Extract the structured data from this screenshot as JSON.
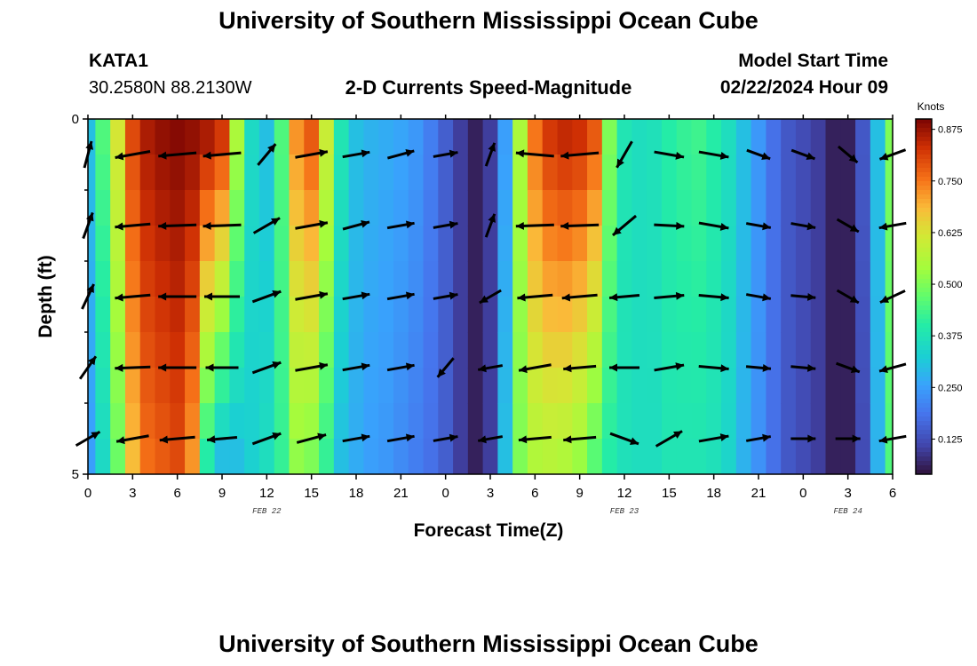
{
  "header": {
    "title": "University of Southern Mississippi Ocean Cube",
    "station": "KATA1",
    "coordinates": "30.2580N  88.2130W",
    "product": "2-D Currents Speed-Magnitude",
    "model_start_label": "Model Start Time",
    "model_start_value": "02/22/2024 Hour 09"
  },
  "footer": {
    "title": "University of Southern Mississippi Ocean Cube"
  },
  "chart_data": {
    "type": "heatmap",
    "title": "2-D Currents Speed-Magnitude",
    "xlabel": "Forecast Time(Z)",
    "ylabel": "Depth (ft)",
    "x_tick_labels": [
      "0",
      "3",
      "6",
      "9",
      "12",
      "15",
      "18",
      "21",
      "0",
      "3",
      "6",
      "9",
      "12",
      "15",
      "18",
      "21",
      "0",
      "3",
      "6"
    ],
    "x_range_hours": [
      0,
      54
    ],
    "date_labels": [
      {
        "text": "FEB 22",
        "hour": 12
      },
      {
        "text": "FEB 23",
        "hour": 36
      },
      {
        "text": "FEB 24",
        "hour": 51
      }
    ],
    "y_tick_labels": [
      "0",
      "5"
    ],
    "y_range_ft": [
      0,
      5
    ],
    "depth_layers": 5,
    "colorbar": {
      "unit": "Knots",
      "range": [
        0.04,
        0.9
      ],
      "ticks": [
        "0.875",
        "0.750",
        "0.625",
        "0.500",
        "0.375",
        "0.250",
        "0.125"
      ],
      "tick_values": [
        0.875,
        0.75,
        0.625,
        0.5,
        0.375,
        0.25,
        0.125
      ]
    },
    "speed_profile": {
      "hours": [
        0,
        1,
        2,
        3,
        4,
        5,
        6,
        7,
        8,
        9,
        10,
        11,
        12,
        13,
        14,
        15,
        16,
        17,
        18,
        19,
        20,
        21,
        22,
        23,
        24,
        25,
        26,
        27,
        28,
        29,
        30,
        31,
        32,
        33,
        34,
        35,
        36,
        37,
        38,
        39,
        40,
        41,
        42,
        43,
        44,
        45,
        46,
        47,
        48,
        49,
        50,
        51,
        52,
        53,
        54
      ],
      "surface": [
        0.3,
        0.45,
        0.62,
        0.8,
        0.86,
        0.88,
        0.89,
        0.88,
        0.86,
        0.82,
        0.55,
        0.35,
        0.3,
        0.45,
        0.72,
        0.78,
        0.6,
        0.38,
        0.3,
        0.28,
        0.27,
        0.26,
        0.24,
        0.2,
        0.15,
        0.1,
        0.06,
        0.1,
        0.25,
        0.55,
        0.75,
        0.82,
        0.84,
        0.83,
        0.78,
        0.5,
        0.38,
        0.36,
        0.37,
        0.4,
        0.42,
        0.43,
        0.4,
        0.36,
        0.3,
        0.24,
        0.18,
        0.14,
        0.12,
        0.1,
        0.06,
        0.06,
        0.14,
        0.3,
        0.5
      ],
      "bottom": [
        0.25,
        0.35,
        0.48,
        0.68,
        0.76,
        0.78,
        0.8,
        0.72,
        0.4,
        0.3,
        0.3,
        0.33,
        0.36,
        0.42,
        0.52,
        0.5,
        0.42,
        0.3,
        0.27,
        0.25,
        0.24,
        0.22,
        0.2,
        0.18,
        0.15,
        0.1,
        0.06,
        0.1,
        0.3,
        0.5,
        0.56,
        0.57,
        0.56,
        0.53,
        0.46,
        0.4,
        0.37,
        0.36,
        0.36,
        0.38,
        0.38,
        0.38,
        0.37,
        0.34,
        0.28,
        0.23,
        0.18,
        0.14,
        0.12,
        0.1,
        0.06,
        0.06,
        0.12,
        0.28,
        0.45
      ]
    },
    "vectors": {
      "unit": "relative speed/direction",
      "hours": [
        0,
        3,
        6,
        9,
        12,
        15,
        18,
        21,
        24,
        27,
        30,
        33,
        36,
        39,
        42,
        45,
        48,
        51,
        54
      ],
      "depth_levels_ft": [
        0.5,
        1.5,
        2.5,
        3.5,
        4.5
      ],
      "direction_deg": [
        [
          15,
          260,
          265,
          265,
          40,
          80,
          80,
          75,
          80,
          20,
          275,
          265,
          210,
          100,
          100,
          110,
          110,
          130,
          250
        ],
        [
          20,
          265,
          268,
          268,
          60,
          80,
          75,
          80,
          80,
          20,
          268,
          268,
          230,
          93,
          100,
          100,
          100,
          120,
          260
        ],
        [
          25,
          265,
          270,
          270,
          70,
          80,
          80,
          80,
          80,
          240,
          265,
          265,
          265,
          85,
          95,
          100,
          95,
          120,
          245
        ],
        [
          35,
          268,
          270,
          270,
          70,
          80,
          80,
          80,
          220,
          260,
          260,
          265,
          270,
          80,
          95,
          95,
          95,
          110,
          255
        ],
        [
          60,
          260,
          265,
          265,
          70,
          75,
          80,
          80,
          80,
          260,
          265,
          265,
          110,
          60,
          80,
          80,
          90,
          90,
          260
        ]
      ],
      "speed": [
        [
          0.3,
          0.6,
          0.7,
          0.7,
          0.3,
          0.5,
          0.3,
          0.3,
          0.2,
          0.2,
          0.7,
          0.7,
          0.4,
          0.4,
          0.4,
          0.2,
          0.2,
          0.2,
          0.3
        ],
        [
          0.3,
          0.6,
          0.7,
          0.7,
          0.4,
          0.5,
          0.3,
          0.3,
          0.2,
          0.2,
          0.7,
          0.7,
          0.4,
          0.4,
          0.4,
          0.2,
          0.2,
          0.2,
          0.3
        ],
        [
          0.3,
          0.6,
          0.7,
          0.6,
          0.4,
          0.5,
          0.3,
          0.3,
          0.2,
          0.2,
          0.6,
          0.6,
          0.4,
          0.4,
          0.4,
          0.2,
          0.2,
          0.2,
          0.3
        ],
        [
          0.3,
          0.6,
          0.7,
          0.5,
          0.4,
          0.5,
          0.3,
          0.3,
          0.2,
          0.2,
          0.5,
          0.5,
          0.4,
          0.4,
          0.4,
          0.2,
          0.2,
          0.2,
          0.3
        ],
        [
          0.3,
          0.5,
          0.6,
          0.4,
          0.4,
          0.4,
          0.3,
          0.3,
          0.2,
          0.2,
          0.5,
          0.5,
          0.4,
          0.4,
          0.4,
          0.2,
          0.2,
          0.2,
          0.3
        ]
      ]
    }
  }
}
